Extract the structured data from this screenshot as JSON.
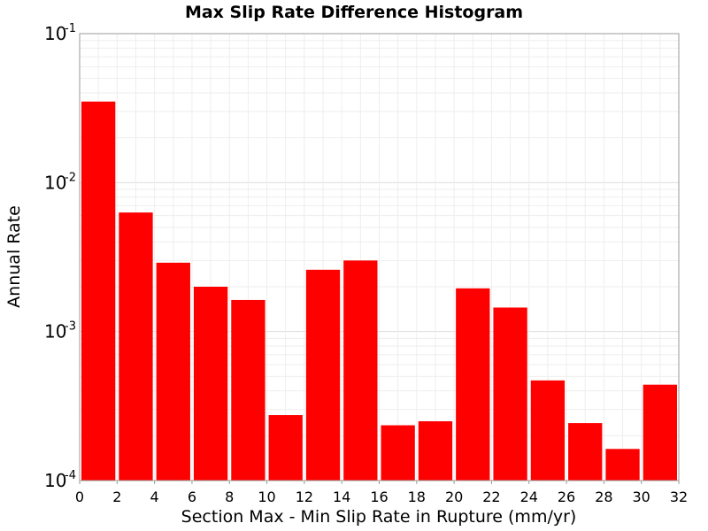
{
  "chart_data": {
    "type": "bar",
    "title": "Max Slip Rate Difference Histogram",
    "xlabel": "Section Max - Min Slip Rate in Rupture (mm/yr)",
    "ylabel": "Annual Rate",
    "xlim": [
      0,
      32
    ],
    "ylim": [
      0.0001,
      0.1
    ],
    "yscale": "log",
    "bin_width": 2,
    "x_ticks": [
      "0",
      "2",
      "4",
      "6",
      "8",
      "10",
      "12",
      "14",
      "16",
      "18",
      "20",
      "22",
      "24",
      "26",
      "28",
      "30",
      "32"
    ],
    "y_ticks": [
      {
        "base": "10",
        "exp": "-1",
        "value": 0.1
      },
      {
        "base": "10",
        "exp": "-2",
        "value": 0.01
      },
      {
        "base": "10",
        "exp": "-3",
        "value": 0.001
      },
      {
        "base": "10",
        "exp": "-4",
        "value": 0.0001
      }
    ],
    "bin_starts": [
      0,
      2,
      4,
      6,
      8,
      10,
      12,
      14,
      16,
      18,
      20,
      22,
      24,
      26,
      28,
      30
    ],
    "values": [
      0.035,
      0.0063,
      0.0029,
      0.002,
      0.00163,
      0.000275,
      0.0026,
      0.003,
      0.000235,
      0.00025,
      0.00195,
      0.00145,
      0.00047,
      0.000243,
      0.000163,
      0.00044
    ],
    "bar_color": "#ff0000",
    "grid": true
  }
}
